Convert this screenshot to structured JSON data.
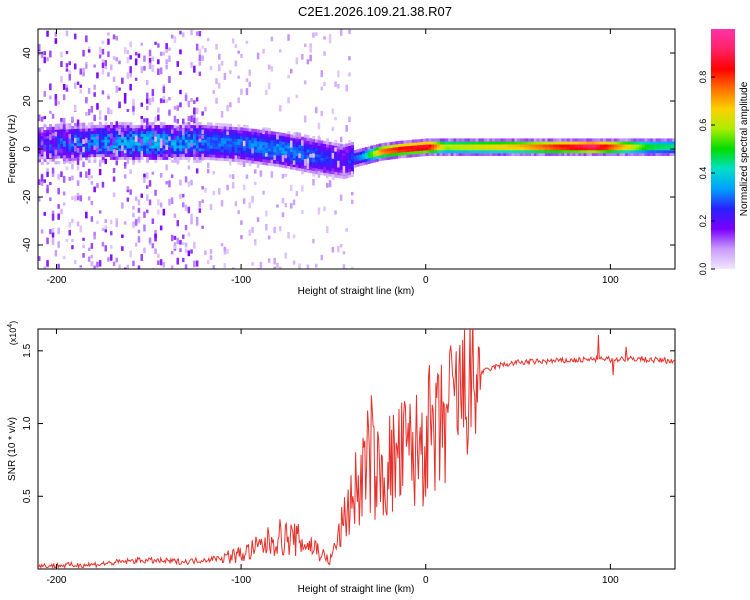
{
  "title": "C2E1.2026.109.21.38.R07",
  "chart_data": [
    {
      "type": "heatmap",
      "xlabel": "Height of straight line (km)",
      "ylabel": "Frequency (Hz)",
      "xlim": [
        -210,
        135
      ],
      "ylim": [
        -50,
        50
      ],
      "x_ticks": [
        -200,
        -100,
        0,
        100
      ],
      "y_ticks": [
        -40,
        -20,
        0,
        20,
        40
      ],
      "colorbar": {
        "label": "Normalized spectral amplitude",
        "range": [
          0.0,
          1.0
        ],
        "ticks": [
          0.0,
          0.2,
          0.4,
          0.6,
          0.8
        ],
        "tick_labels": [
          "0.0",
          "0.2",
          "0.4",
          "0.6",
          "0.8"
        ],
        "colormap": [
          "#f2e6ff",
          "#c89cff",
          "#7a00ff",
          "#2a20ff",
          "#00a0ff",
          "#00e0c8",
          "#00dd00",
          "#aaee00",
          "#ffd000",
          "#ff7000",
          "#ff0000",
          "#ff2266",
          "#ff33aa"
        ]
      },
      "ridge": {
        "x": [
          -210,
          -180,
          -150,
          -120,
          -100,
          -80,
          -60,
          -45,
          -35,
          -25,
          -15,
          0,
          10,
          50,
          90,
          120,
          135
        ],
        "y": [
          2,
          3,
          3,
          3,
          2,
          0,
          -3,
          -5,
          -3,
          -1,
          0,
          1,
          1,
          1,
          1,
          1,
          1
        ],
        "peak_amplitude": [
          0.22,
          0.3,
          0.35,
          0.3,
          0.3,
          0.32,
          0.28,
          0.2,
          0.35,
          0.75,
          0.85,
          0.9,
          0.6,
          0.7,
          0.95,
          0.5,
          0.45
        ]
      }
    },
    {
      "type": "line",
      "xlabel": "Height of straight line (km)",
      "ylabel": "SNR (10 * v/v)",
      "y_multiplier": "(x10",
      "y_multiplier_exp": "4",
      "y_multiplier_close": ")",
      "xlim": [
        -210,
        135
      ],
      "ylim": [
        0,
        1.65
      ],
      "x_ticks": [
        -200,
        -100,
        0,
        100
      ],
      "y_ticks": [
        0.5,
        1.0,
        1.5
      ],
      "y_tick_labels": [
        "0.5",
        "1.0",
        "1.5"
      ],
      "color": "#e8302a",
      "series": {
        "name": "SNR",
        "x": [
          -210,
          -180,
          -155,
          -130,
          -115,
          -100,
          -90,
          -80,
          -70,
          -60,
          -52,
          -45,
          -40,
          -35,
          -30,
          -25,
          -20,
          -15,
          -10,
          -5,
          0,
          5,
          10,
          15,
          20,
          25,
          30,
          40,
          50,
          70,
          90,
          100,
          110,
          120,
          135
        ],
        "y": [
          0.02,
          0.03,
          0.06,
          0.05,
          0.07,
          0.1,
          0.15,
          0.22,
          0.2,
          0.15,
          0.05,
          0.3,
          0.5,
          0.6,
          0.8,
          0.6,
          0.7,
          0.75,
          0.8,
          0.8,
          0.95,
          0.85,
          1.0,
          1.15,
          1.2,
          1.25,
          1.35,
          1.4,
          1.42,
          1.43,
          1.44,
          1.44,
          1.45,
          1.44,
          1.43
        ]
      }
    }
  ]
}
